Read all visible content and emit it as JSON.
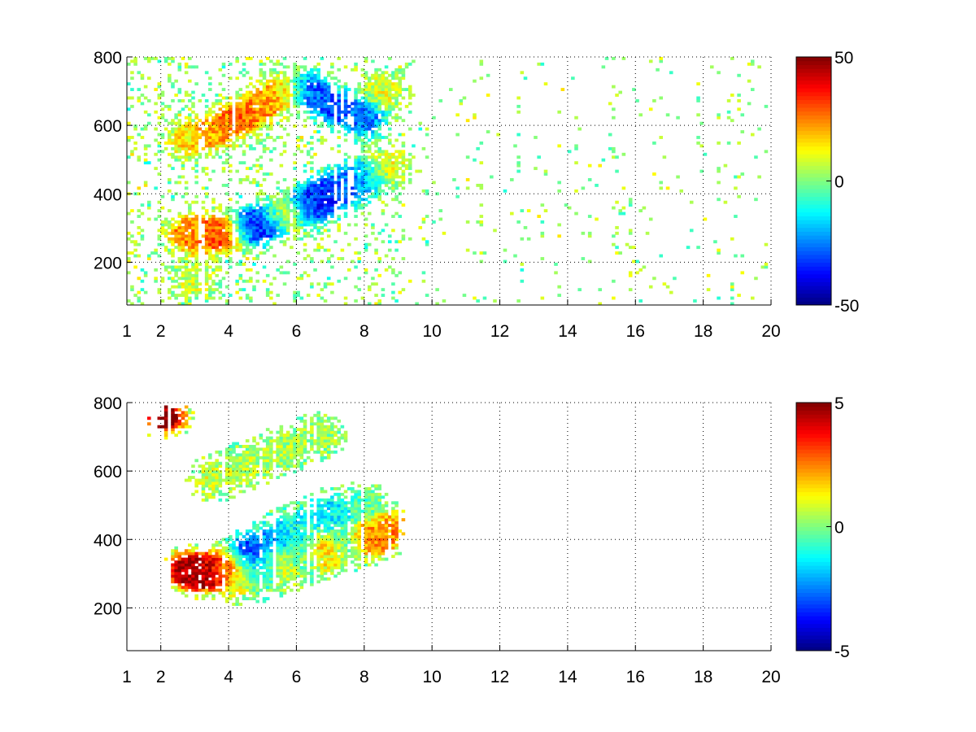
{
  "figure": {
    "background": "#ffffff",
    "colormap": "jet",
    "missing_color": "#ffffff"
  },
  "chart_data": [
    {
      "type": "heatmap",
      "title": "",
      "xlabel": "",
      "ylabel": "",
      "xlim": [
        1,
        20
      ],
      "ylim": [
        75,
        800
      ],
      "x_ticks": [
        1,
        2,
        4,
        6,
        8,
        10,
        12,
        14,
        16,
        18,
        20
      ],
      "y_ticks": [
        200,
        400,
        600,
        800
      ],
      "grid": true,
      "grid_style": "dotted",
      "colorbar": {
        "min": -50,
        "max": 50,
        "ticks": [
          -50,
          0,
          50
        ]
      },
      "features": [
        {
          "x": 2.8,
          "y": 285,
          "value": 22
        },
        {
          "x": 3.3,
          "y": 280,
          "value": 28
        },
        {
          "x": 4.0,
          "y": 285,
          "value": 35
        },
        {
          "x": 4.6,
          "y": 300,
          "value": -40
        },
        {
          "x": 5.2,
          "y": 320,
          "value": -35
        },
        {
          "x": 5.7,
          "y": 340,
          "value": 30
        },
        {
          "x": 6.3,
          "y": 360,
          "value": -38
        },
        {
          "x": 6.8,
          "y": 390,
          "value": -32
        },
        {
          "x": 7.4,
          "y": 420,
          "value": -28
        },
        {
          "x": 8.0,
          "y": 450,
          "value": -20
        },
        {
          "x": 8.7,
          "y": 480,
          "value": 12
        },
        {
          "x": 2.8,
          "y": 560,
          "value": 15
        },
        {
          "x": 3.6,
          "y": 580,
          "value": 22
        },
        {
          "x": 4.3,
          "y": 620,
          "value": 28
        },
        {
          "x": 5.0,
          "y": 660,
          "value": 22
        },
        {
          "x": 5.6,
          "y": 700,
          "value": 18
        },
        {
          "x": 6.4,
          "y": 700,
          "value": -30
        },
        {
          "x": 7.2,
          "y": 650,
          "value": -30
        },
        {
          "x": 8.0,
          "y": 620,
          "value": -25
        },
        {
          "x": 8.6,
          "y": 700,
          "value": 10
        },
        {
          "x": 3.0,
          "y": 150,
          "value": 8
        }
      ]
    },
    {
      "type": "heatmap",
      "title": "",
      "xlabel": "",
      "ylabel": "",
      "xlim": [
        1,
        20
      ],
      "ylim": [
        75,
        800
      ],
      "x_ticks": [
        1,
        2,
        4,
        6,
        8,
        10,
        12,
        14,
        16,
        18,
        20
      ],
      "y_ticks": [
        200,
        400,
        600,
        800
      ],
      "grid": true,
      "grid_style": "dotted",
      "colorbar": {
        "min": -5,
        "max": 5,
        "ticks": [
          -5,
          0,
          5
        ]
      },
      "features": [
        {
          "x": 2.8,
          "y": 310,
          "value": 4.8
        },
        {
          "x": 3.3,
          "y": 300,
          "value": 4.5
        },
        {
          "x": 3.9,
          "y": 320,
          "value": 3.2
        },
        {
          "x": 4.4,
          "y": 280,
          "value": 1.0
        },
        {
          "x": 5.0,
          "y": 300,
          "value": -1.5
        },
        {
          "x": 5.6,
          "y": 320,
          "value": 1.8
        },
        {
          "x": 6.2,
          "y": 340,
          "value": -1.2
        },
        {
          "x": 6.8,
          "y": 360,
          "value": 2.4
        },
        {
          "x": 7.5,
          "y": 380,
          "value": -0.8
        },
        {
          "x": 8.2,
          "y": 400,
          "value": 3.0
        },
        {
          "x": 8.8,
          "y": 430,
          "value": 2.2
        },
        {
          "x": 4.6,
          "y": 360,
          "value": -3.5
        },
        {
          "x": 5.4,
          "y": 400,
          "value": -2.0
        },
        {
          "x": 6.0,
          "y": 440,
          "value": -1.0
        },
        {
          "x": 7.0,
          "y": 480,
          "value": -1.5
        },
        {
          "x": 8.0,
          "y": 500,
          "value": -0.5
        },
        {
          "x": 4.6,
          "y": 620,
          "value": 0.5
        },
        {
          "x": 5.6,
          "y": 660,
          "value": 0.4
        },
        {
          "x": 6.6,
          "y": 700,
          "value": 0.3
        },
        {
          "x": 3.6,
          "y": 580,
          "value": 0.8
        },
        {
          "x": 2.1,
          "y": 760,
          "value": 5.0
        }
      ]
    }
  ]
}
